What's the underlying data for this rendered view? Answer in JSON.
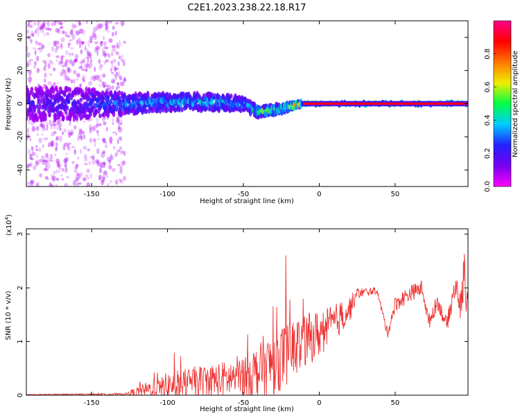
{
  "title": "C2E1.2023.238.22.18.R17",
  "chart_data": [
    {
      "type": "heatmap",
      "name": "spectrogram",
      "xlabel": "Height of straight line (km)",
      "ylabel": "Frequency (Hz)",
      "xlim": [
        -193,
        98
      ],
      "ylim": [
        -50,
        50
      ],
      "xticks": [
        -150,
        -100,
        -50,
        0,
        50
      ],
      "yticks": [
        -40,
        -20,
        0,
        20,
        40
      ],
      "colorbar": {
        "label": "Normalized spectral amplitude",
        "range": [
          0.0,
          1.0
        ],
        "ticks": [
          "0.0",
          "0.2",
          "0.4",
          "0.6",
          "0.8"
        ],
        "colormap": [
          "#ff00ff",
          "#7700ee",
          "#2222ff",
          "#00ccff",
          "#00ff44",
          "#eeee00",
          "#ff7700",
          "#ff0000",
          "#ff0088"
        ]
      },
      "band_profile": [
        {
          "x": -190,
          "freq_center": 0,
          "spread_hz": 10,
          "amplitude": 0.2
        },
        {
          "x": -160,
          "freq_center": 0,
          "spread_hz": 9,
          "amplitude": 0.25
        },
        {
          "x": -125,
          "freq_center": 0,
          "spread_hz": 6,
          "amplitude": 0.35
        },
        {
          "x": -100,
          "freq_center": 1,
          "spread_hz": 5,
          "amplitude": 0.4
        },
        {
          "x": -75,
          "freq_center": 1,
          "spread_hz": 5,
          "amplitude": 0.42
        },
        {
          "x": -50,
          "freq_center": 0,
          "spread_hz": 4,
          "amplitude": 0.4
        },
        {
          "x": -40,
          "freq_center": -5,
          "spread_hz": 3,
          "amplitude": 0.55
        },
        {
          "x": -25,
          "freq_center": -3,
          "spread_hz": 3,
          "amplitude": 0.55
        },
        {
          "x": -12,
          "freq_center": 0,
          "spread_hz": 1.5,
          "amplitude": 0.9
        },
        {
          "x": 10,
          "freq_center": 0,
          "spread_hz": 1.5,
          "amplitude": 0.95
        },
        {
          "x": 95,
          "freq_center": 0,
          "spread_hz": 1.5,
          "amplitude": 0.95
        }
      ]
    },
    {
      "type": "line",
      "name": "snr",
      "xlabel": "Height of straight line (km)",
      "ylabel": "SNR (10 * v/v)",
      "scale_label": "(x10",
      "scale_exp": "4",
      "scale_close": ")",
      "xlim": [
        -193,
        98
      ],
      "ylim": [
        0,
        3.1
      ],
      "xticks": [
        -150,
        -100,
        -50,
        0,
        50
      ],
      "yticks": [
        0,
        1,
        2,
        3
      ],
      "series": [
        {
          "name": "SNR",
          "color": "#ee3333",
          "envelope": [
            {
              "x": -193,
              "base": 0.01,
              "amp": 0.01
            },
            {
              "x": -128,
              "base": 0.02,
              "amp": 0.02
            },
            {
              "x": -120,
              "base": 0.06,
              "amp": 0.1
            },
            {
              "x": -100,
              "base": 0.18,
              "amp": 0.25
            },
            {
              "x": -80,
              "base": 0.25,
              "amp": 0.3
            },
            {
              "x": -60,
              "base": 0.3,
              "amp": 0.35
            },
            {
              "x": -40,
              "base": 0.45,
              "amp": 0.5
            },
            {
              "x": -30,
              "base": 0.6,
              "amp": 0.6
            },
            {
              "x": -20,
              "base": 0.8,
              "amp": 0.6
            },
            {
              "x": -10,
              "base": 1.0,
              "amp": 0.5
            },
            {
              "x": 0,
              "base": 1.15,
              "amp": 0.45
            },
            {
              "x": 10,
              "base": 1.35,
              "amp": 0.35
            },
            {
              "x": 20,
              "base": 1.6,
              "amp": 0.25
            },
            {
              "x": 25,
              "base": 1.9,
              "amp": 0.1
            },
            {
              "x": 38,
              "base": 1.95,
              "amp": 0.06
            },
            {
              "x": 45,
              "base": 1.15,
              "amp": 0.1
            },
            {
              "x": 50,
              "base": 1.7,
              "amp": 0.15
            },
            {
              "x": 60,
              "base": 1.9,
              "amp": 0.15
            },
            {
              "x": 68,
              "base": 2.0,
              "amp": 0.15
            },
            {
              "x": 72,
              "base": 1.35,
              "amp": 0.15
            },
            {
              "x": 78,
              "base": 1.75,
              "amp": 0.15
            },
            {
              "x": 84,
              "base": 1.3,
              "amp": 0.15
            },
            {
              "x": 90,
              "base": 2.1,
              "amp": 0.25
            },
            {
              "x": 93,
              "base": 1.6,
              "amp": 0.25
            },
            {
              "x": 96,
              "base": 2.4,
              "amp": 0.5
            },
            {
              "x": 98,
              "base": 1.3,
              "amp": 0.3
            }
          ]
        }
      ]
    }
  ]
}
